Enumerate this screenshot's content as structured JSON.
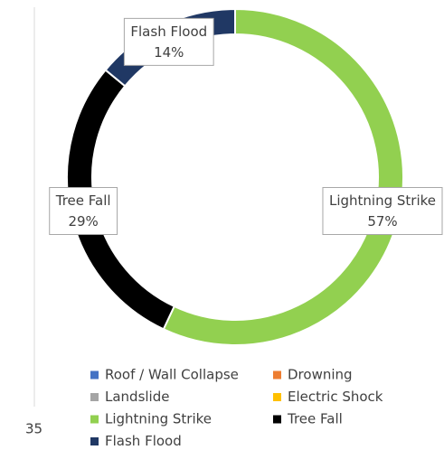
{
  "chart_data": {
    "type": "donut",
    "categories": [
      "Roof / Wall Collapse",
      "Drowning",
      "Landslide",
      "Electric Shock",
      "Lightning Strike",
      "Tree Fall",
      "Flash Flood"
    ],
    "values": [
      0,
      0,
      0,
      0,
      57,
      29,
      14
    ],
    "value_labels": [
      null,
      null,
      null,
      null,
      "57%",
      "29%",
      "14%"
    ],
    "colors": [
      "#4472c4",
      "#ed7d31",
      "#a5a5a5",
      "#ffc000",
      "#92d050",
      "#000000",
      "#203864"
    ],
    "annotation": "35",
    "legend": "bottom"
  }
}
